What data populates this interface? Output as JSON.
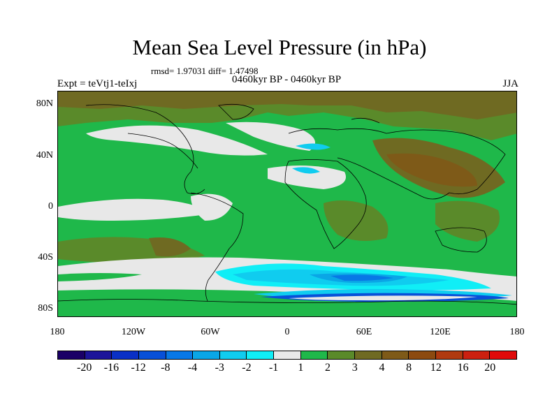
{
  "title": "Mean Sea Level Pressure (in hPa)",
  "stats": "rmsd= 1.97031 diff= 1.47498",
  "subtitle": "0460kyr BP - 0460kyr BP",
  "left_label": "Expt = teVtj1-teIxj",
  "right_label": "JJA",
  "lat_labels": [
    "80N",
    "40N",
    "0",
    "40S",
    "80S"
  ],
  "lon_labels": [
    "180",
    "120W",
    "60W",
    "0",
    "60E",
    "120E",
    "180"
  ],
  "colorbar": {
    "colors": [
      "#1a0066",
      "#1c1499",
      "#0a30c6",
      "#0850d8",
      "#0878e6",
      "#0aa6e6",
      "#10ccef",
      "#10eef6",
      "#e8e8e8",
      "#1fb84a",
      "#5a8a2a",
      "#6f6a22",
      "#7e5a18",
      "#8c4a10",
      "#b03a10",
      "#cc2010",
      "#e00a0a"
    ],
    "labels": [
      "-20",
      "-16",
      "-12",
      "-8",
      "-4",
      "-3",
      "-2",
      "-1",
      "1",
      "2",
      "3",
      "4",
      "8",
      "12",
      "16",
      "20"
    ]
  }
}
